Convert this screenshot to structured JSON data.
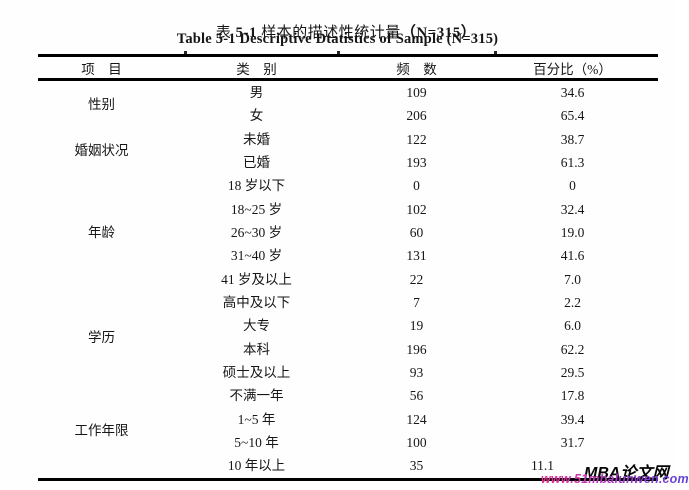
{
  "page": {
    "title_cn": {
      "s1": "表 ",
      "s2": "5-1",
      "s3": " 样本的描述性统计量",
      "s4": "（N=315）"
    },
    "title_en": "Table 5-1 Descriptive Dtatistics of Sample (N=315)"
  },
  "table": {
    "headers": [
      "项　目",
      "类　别",
      "频　数",
      "百分比（%）"
    ],
    "groups": [
      {
        "item": "性别",
        "rows": [
          {
            "category": "男",
            "frequency": "109",
            "percentage": "34.6"
          },
          {
            "category": "女",
            "frequency": "206",
            "percentage": "65.4"
          }
        ]
      },
      {
        "item": "婚姻状况",
        "rows": [
          {
            "category": "未婚",
            "frequency": "122",
            "percentage": "38.7"
          },
          {
            "category": "已婚",
            "frequency": "193",
            "percentage": "61.3"
          }
        ]
      },
      {
        "item": "年龄",
        "rows": [
          {
            "category": "18 岁以下",
            "frequency": "0",
            "percentage": "0"
          },
          {
            "category": "18~25 岁",
            "frequency": "102",
            "percentage": "32.4"
          },
          {
            "category": "26~30 岁",
            "frequency": "60",
            "percentage": "19.0"
          },
          {
            "category": "31~40 岁",
            "frequency": "131",
            "percentage": "41.6"
          },
          {
            "category": "41 岁及以上",
            "frequency": "22",
            "percentage": "7.0"
          }
        ]
      },
      {
        "item": "学历",
        "rows": [
          {
            "category": "高中及以下",
            "frequency": "7",
            "percentage": "2.2"
          },
          {
            "category": "大专",
            "frequency": "19",
            "percentage": "6.0"
          },
          {
            "category": "本科",
            "frequency": "196",
            "percentage": "62.2"
          },
          {
            "category": "硕士及以上",
            "frequency": "93",
            "percentage": "29.5"
          }
        ]
      },
      {
        "item": "工作年限",
        "rows": [
          {
            "category": "不满一年",
            "frequency": "56",
            "percentage": "17.8"
          },
          {
            "category": "1~5 年",
            "frequency": "124",
            "percentage": "39.4"
          },
          {
            "category": "5~10 年",
            "frequency": "100",
            "percentage": "31.7"
          },
          {
            "category": "10 年以上",
            "frequency": "35",
            "percentage": "11.1"
          }
        ]
      }
    ]
  },
  "watermark": {
    "site_name": "MBA论文网",
    "site_url": "www.51mbalunwen.com"
  },
  "colors": {
    "rule_color": "#000000",
    "url_gradient_start": "#ee2f8d",
    "url_gradient_mid": "#a139c9",
    "url_gradient_end": "#5a43d8"
  }
}
